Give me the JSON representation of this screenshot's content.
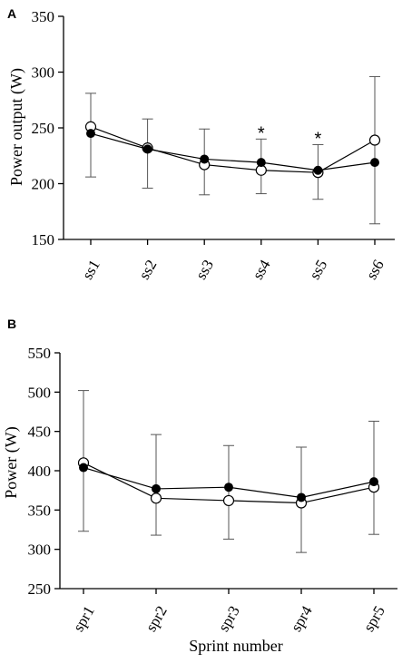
{
  "chart_data": [
    {
      "panel": "A",
      "type": "line",
      "ylabel": "Power output (W)",
      "xlabel": "",
      "categories": [
        "ss1",
        "ss2",
        "ss3",
        "ss4",
        "ss5",
        "ss6"
      ],
      "ylim": [
        150,
        350
      ],
      "yticks": [
        "150",
        "200",
        "250",
        "300",
        "350"
      ],
      "series": [
        {
          "marker": "open-circle",
          "values": [
            251,
            232,
            217,
            212,
            210,
            239
          ]
        },
        {
          "marker": "filled-circle",
          "values": [
            245,
            231,
            222,
            219,
            212,
            219
          ]
        }
      ],
      "error_bars": [
        {
          "low": 206,
          "high": 281
        },
        {
          "low": 196,
          "high": 258
        },
        {
          "low": 190,
          "high": 249
        },
        {
          "low": 191,
          "high": 240
        },
        {
          "low": 186,
          "high": 235
        },
        {
          "low": 164,
          "high": 296
        }
      ],
      "annotations": [
        {
          "category": "ss4",
          "text": "*"
        },
        {
          "category": "ss5",
          "text": "*"
        }
      ],
      "grid": false
    },
    {
      "panel": "B",
      "type": "line",
      "ylabel": "Power (W)",
      "xlabel": "Sprint number",
      "categories": [
        "spr1",
        "spr2",
        "spr3",
        "spr4",
        "spr5"
      ],
      "ylim": [
        250,
        550
      ],
      "yticks": [
        "250",
        "300",
        "350",
        "400",
        "450",
        "500",
        "550"
      ],
      "series": [
        {
          "marker": "open-circle",
          "values": [
            410,
            365,
            362,
            359,
            379
          ]
        },
        {
          "marker": "filled-circle",
          "values": [
            404,
            377,
            379,
            366,
            386
          ]
        }
      ],
      "error_bars": [
        {
          "low": 323,
          "high": 502
        },
        {
          "low": 318,
          "high": 446
        },
        {
          "low": 313,
          "high": 432
        },
        {
          "low": 296,
          "high": 430
        },
        {
          "low": 319,
          "high": 463
        }
      ],
      "annotations": [],
      "grid": false
    }
  ]
}
